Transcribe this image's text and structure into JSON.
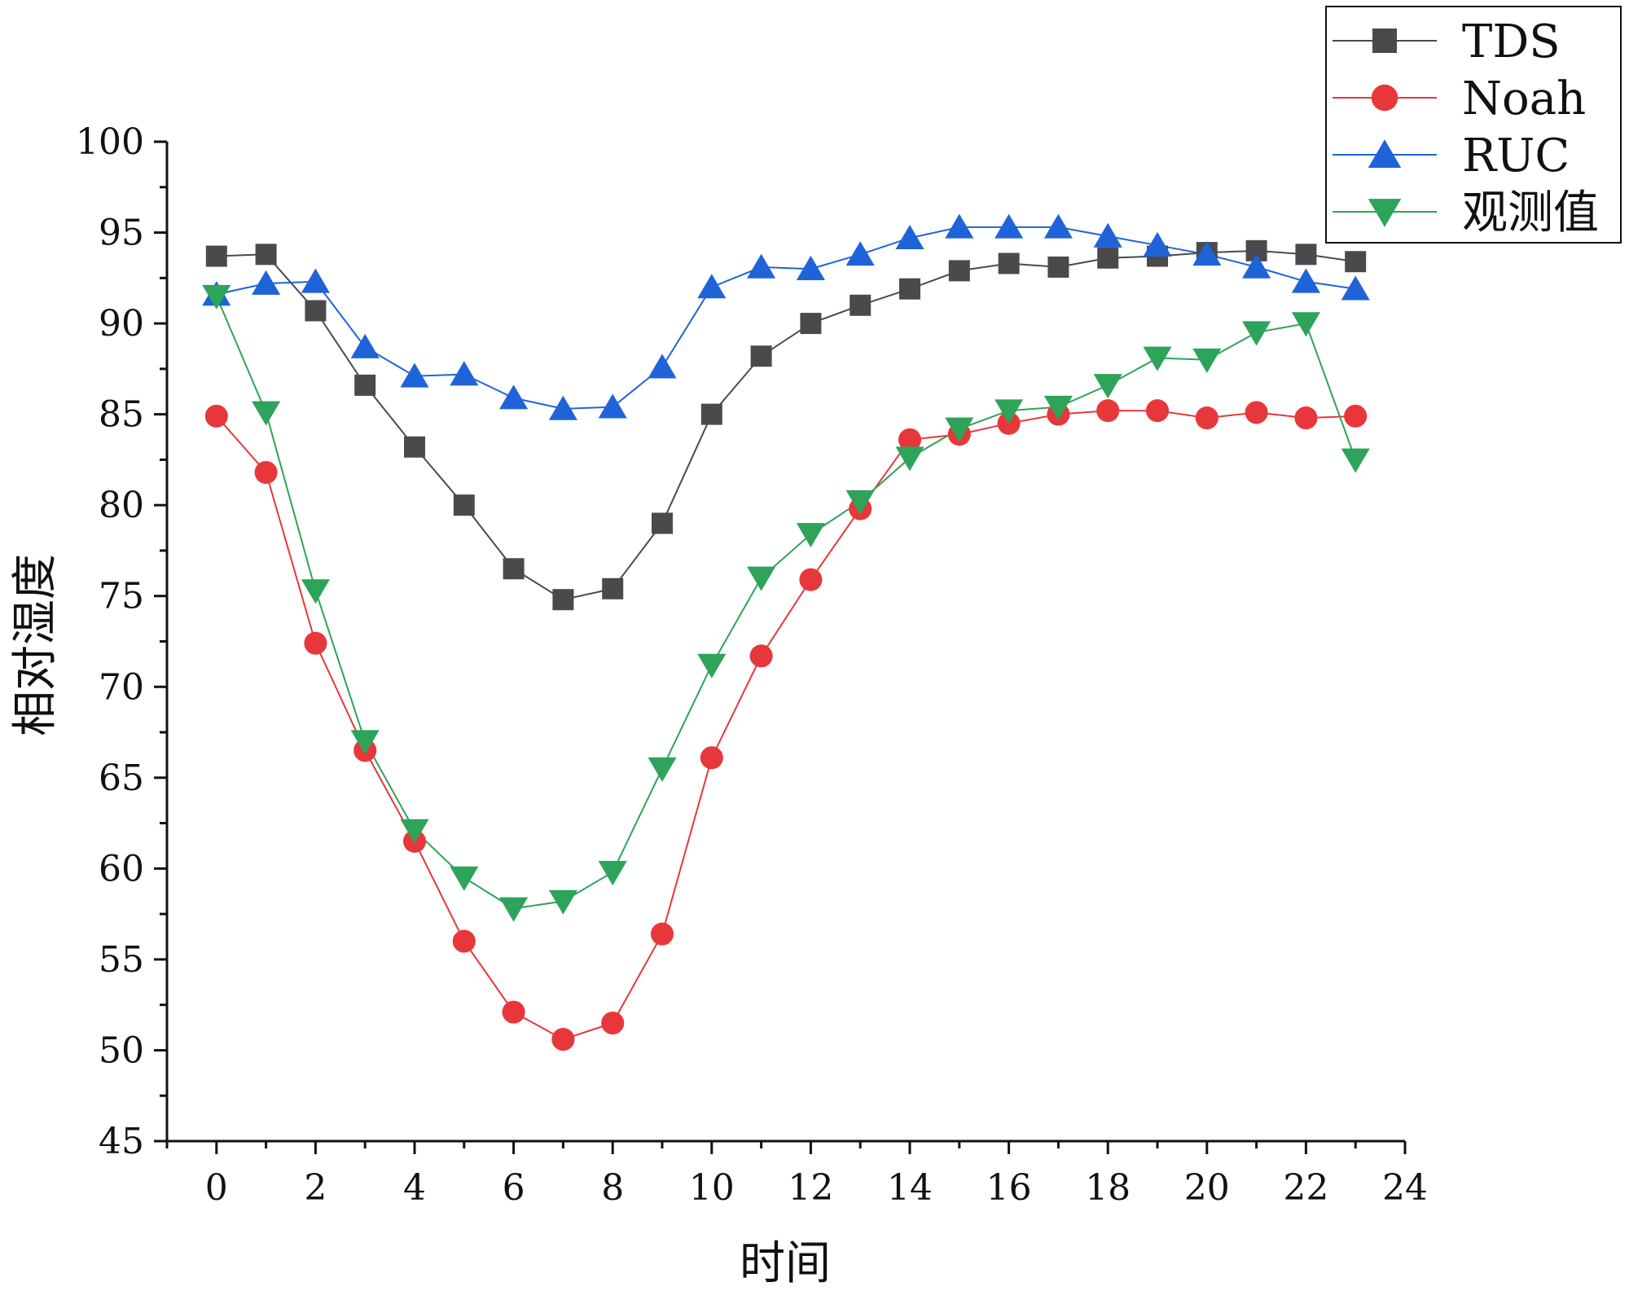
{
  "chart_data": {
    "type": "line",
    "title": "",
    "xlabel": "时间",
    "ylabel": "相对湿度",
    "xlim": [
      -1,
      24
    ],
    "ylim": [
      45,
      100
    ],
    "xticks": [
      0,
      2,
      4,
      6,
      8,
      10,
      12,
      14,
      16,
      18,
      20,
      22,
      24
    ],
    "yticks": [
      45,
      50,
      55,
      60,
      65,
      70,
      75,
      80,
      85,
      90,
      95,
      100
    ],
    "grid": false,
    "legend_position": "top-right",
    "x": [
      0,
      1,
      2,
      3,
      4,
      5,
      6,
      7,
      8,
      9,
      10,
      11,
      12,
      13,
      14,
      15,
      16,
      17,
      18,
      19,
      20,
      21,
      22,
      23
    ],
    "series": [
      {
        "name": "TDS",
        "color": "#4a4a4a",
        "marker": "square",
        "values": [
          93.7,
          93.8,
          90.7,
          86.6,
          83.2,
          80.0,
          76.5,
          74.8,
          75.4,
          79.0,
          85.0,
          88.2,
          90.0,
          91.0,
          91.9,
          92.9,
          93.3,
          93.1,
          93.6,
          93.7,
          93.9,
          94.0,
          93.8,
          93.4
        ]
      },
      {
        "name": "Noah",
        "color": "#e8373a",
        "marker": "circle",
        "values": [
          84.9,
          81.8,
          72.4,
          66.5,
          61.5,
          56.0,
          52.1,
          50.6,
          51.5,
          56.4,
          66.1,
          71.7,
          75.9,
          79.8,
          83.6,
          83.9,
          84.5,
          85.0,
          85.2,
          85.2,
          84.8,
          85.1,
          84.8,
          84.9
        ]
      },
      {
        "name": "RUC",
        "color": "#1f63d8",
        "marker": "triangle-up",
        "values": [
          91.6,
          92.2,
          92.3,
          88.7,
          87.1,
          87.2,
          85.9,
          85.3,
          85.4,
          87.6,
          92.0,
          93.1,
          93.0,
          93.8,
          94.7,
          95.3,
          95.3,
          95.3,
          94.8,
          94.3,
          93.8,
          93.1,
          92.3,
          91.9
        ]
      },
      {
        "name": "观测值",
        "color": "#2ea35a",
        "marker": "triangle-down",
        "values": [
          91.5,
          85.1,
          75.3,
          67.0,
          62.1,
          59.5,
          57.8,
          58.2,
          59.8,
          65.5,
          71.2,
          76.0,
          78.4,
          80.2,
          82.6,
          84.2,
          85.2,
          85.4,
          86.6,
          88.1,
          88.0,
          89.5,
          90.0,
          82.5
        ]
      }
    ]
  }
}
